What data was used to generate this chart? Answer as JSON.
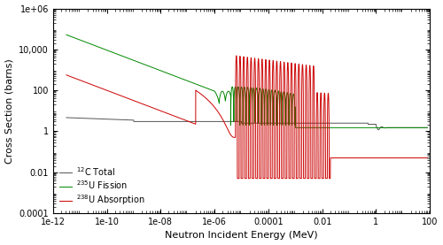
{
  "xlabel": "Neutron Incident Energy (MeV)",
  "ylabel": "Cross Section (barns)",
  "c12_color": "#555555",
  "u235_color": "#008800",
  "u238_color": "#cc0000",
  "linewidth": 0.7,
  "legend": [
    {
      "label": "$^{12}$C Total"
    },
    {
      "label": "$^{235}$U Fission"
    },
    {
      "label": "$^{238}$U Absorption"
    }
  ],
  "yticks": [
    0.0001,
    0.01,
    1,
    100,
    10000,
    1000000
  ],
  "ytick_labels": [
    "0.0001",
    "0.01",
    "1",
    "100",
    "10,000",
    "1e+06"
  ],
  "xticks": [
    1e-12,
    1e-10,
    1e-08,
    1e-06,
    0.0001,
    0.01,
    1,
    100
  ],
  "xtick_labels": [
    "1e-12",
    "1e-10",
    "1e-08",
    "1e-06",
    "0.0001",
    "0.01",
    "1",
    "100"
  ]
}
